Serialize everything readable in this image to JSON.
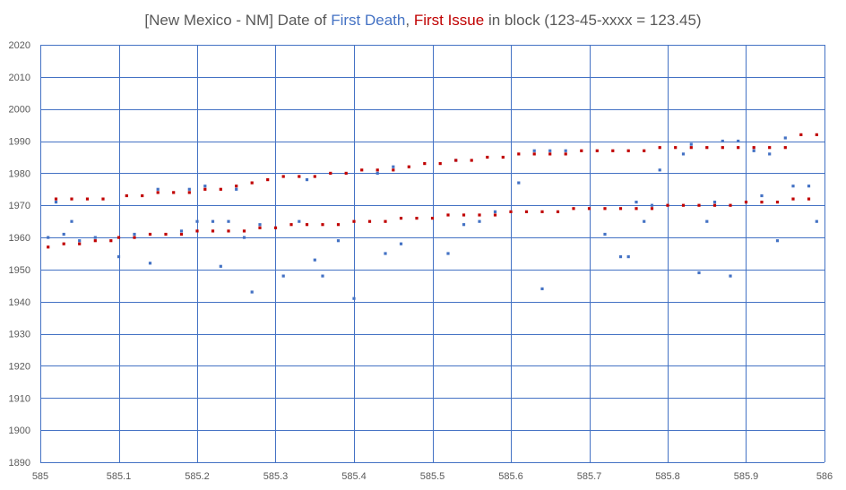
{
  "chart_data": {
    "type": "scatter",
    "title": {
      "prefix": "[New Mexico - NM] Date of ",
      "death_label": "First Death",
      "separator": ", ",
      "issue_label": "First Issue",
      "suffix": " in block (123-45-xxxx = 123.45)"
    },
    "xlim": [
      585,
      586
    ],
    "ylim": [
      1890,
      2020
    ],
    "x_ticks": [
      "585",
      "585.1",
      "585.2",
      "585.3",
      "585.4",
      "585.5",
      "585.6",
      "585.7",
      "585.8",
      "585.9",
      "586"
    ],
    "y_ticks": [
      "1890",
      "1900",
      "1910",
      "1920",
      "1930",
      "1940",
      "1950",
      "1960",
      "1970",
      "1980",
      "1990",
      "2000",
      "2010",
      "2020"
    ],
    "grid": true,
    "colors": {
      "First Death": "#4472c4",
      "First Issue": "#c00000",
      "grid": "#4472c4",
      "title_text": "#595959"
    },
    "series": [
      {
        "name": "First Death",
        "points": [
          [
            585.01,
            1960
          ],
          [
            585.02,
            1971
          ],
          [
            585.03,
            1961
          ],
          [
            585.04,
            1965
          ],
          [
            585.05,
            1959
          ],
          [
            585.07,
            1960
          ],
          [
            585.1,
            1954
          ],
          [
            585.12,
            1961
          ],
          [
            585.14,
            1952
          ],
          [
            585.15,
            1975
          ],
          [
            585.18,
            1962
          ],
          [
            585.19,
            1975
          ],
          [
            585.2,
            1965
          ],
          [
            585.21,
            1976
          ],
          [
            585.22,
            1965
          ],
          [
            585.23,
            1951
          ],
          [
            585.24,
            1965
          ],
          [
            585.25,
            1975
          ],
          [
            585.26,
            1960
          ],
          [
            585.27,
            1943
          ],
          [
            585.28,
            1964
          ],
          [
            585.31,
            1948
          ],
          [
            585.33,
            1965
          ],
          [
            585.34,
            1978
          ],
          [
            585.35,
            1953
          ],
          [
            585.36,
            1948
          ],
          [
            585.38,
            1959
          ],
          [
            585.4,
            1941
          ],
          [
            585.43,
            1980
          ],
          [
            585.44,
            1955
          ],
          [
            585.45,
            1982
          ],
          [
            585.46,
            1958
          ],
          [
            585.52,
            1955
          ],
          [
            585.53,
            1984
          ],
          [
            585.54,
            1964
          ],
          [
            585.56,
            1965
          ],
          [
            585.58,
            1968
          ],
          [
            585.61,
            1977
          ],
          [
            585.63,
            1987
          ],
          [
            585.64,
            1944
          ],
          [
            585.65,
            1987
          ],
          [
            585.67,
            1987
          ],
          [
            585.72,
            1961
          ],
          [
            585.74,
            1954
          ],
          [
            585.75,
            1954
          ],
          [
            585.76,
            1971
          ],
          [
            585.77,
            1965
          ],
          [
            585.78,
            1970
          ],
          [
            585.79,
            1981
          ],
          [
            585.82,
            1986
          ],
          [
            585.83,
            1989
          ],
          [
            585.84,
            1949
          ],
          [
            585.85,
            1965
          ],
          [
            585.86,
            1971
          ],
          [
            585.87,
            1990
          ],
          [
            585.88,
            1948
          ],
          [
            585.89,
            1990
          ],
          [
            585.91,
            1987
          ],
          [
            585.92,
            1973
          ],
          [
            585.93,
            1986
          ],
          [
            585.94,
            1959
          ],
          [
            585.95,
            1991
          ],
          [
            585.96,
            1976
          ],
          [
            585.98,
            1976
          ],
          [
            585.99,
            1965
          ]
        ]
      },
      {
        "name": "First Issue",
        "points": [
          [
            585.01,
            1957
          ],
          [
            585.02,
            1972
          ],
          [
            585.03,
            1958
          ],
          [
            585.04,
            1972
          ],
          [
            585.05,
            1958
          ],
          [
            585.06,
            1972
          ],
          [
            585.07,
            1959
          ],
          [
            585.08,
            1972
          ],
          [
            585.09,
            1959
          ],
          [
            585.1,
            1960
          ],
          [
            585.11,
            1973
          ],
          [
            585.12,
            1960
          ],
          [
            585.13,
            1973
          ],
          [
            585.14,
            1961
          ],
          [
            585.15,
            1974
          ],
          [
            585.16,
            1961
          ],
          [
            585.17,
            1974
          ],
          [
            585.18,
            1961
          ],
          [
            585.19,
            1974
          ],
          [
            585.2,
            1962
          ],
          [
            585.21,
            1975
          ],
          [
            585.22,
            1962
          ],
          [
            585.23,
            1975
          ],
          [
            585.24,
            1962
          ],
          [
            585.25,
            1976
          ],
          [
            585.26,
            1962
          ],
          [
            585.27,
            1977
          ],
          [
            585.28,
            1963
          ],
          [
            585.29,
            1978
          ],
          [
            585.3,
            1963
          ],
          [
            585.31,
            1979
          ],
          [
            585.32,
            1964
          ],
          [
            585.33,
            1979
          ],
          [
            585.34,
            1964
          ],
          [
            585.35,
            1979
          ],
          [
            585.36,
            1964
          ],
          [
            585.37,
            1980
          ],
          [
            585.38,
            1964
          ],
          [
            585.39,
            1980
          ],
          [
            585.4,
            1965
          ],
          [
            585.41,
            1981
          ],
          [
            585.42,
            1965
          ],
          [
            585.43,
            1981
          ],
          [
            585.44,
            1965
          ],
          [
            585.45,
            1981
          ],
          [
            585.46,
            1966
          ],
          [
            585.47,
            1982
          ],
          [
            585.48,
            1966
          ],
          [
            585.49,
            1983
          ],
          [
            585.5,
            1966
          ],
          [
            585.51,
            1983
          ],
          [
            585.52,
            1967
          ],
          [
            585.53,
            1984
          ],
          [
            585.54,
            1967
          ],
          [
            585.55,
            1984
          ],
          [
            585.56,
            1967
          ],
          [
            585.57,
            1985
          ],
          [
            585.58,
            1967
          ],
          [
            585.59,
            1985
          ],
          [
            585.6,
            1968
          ],
          [
            585.61,
            1986
          ],
          [
            585.62,
            1968
          ],
          [
            585.63,
            1986
          ],
          [
            585.64,
            1968
          ],
          [
            585.65,
            1986
          ],
          [
            585.66,
            1968
          ],
          [
            585.67,
            1986
          ],
          [
            585.68,
            1969
          ],
          [
            585.69,
            1987
          ],
          [
            585.7,
            1969
          ],
          [
            585.71,
            1987
          ],
          [
            585.72,
            1969
          ],
          [
            585.73,
            1987
          ],
          [
            585.74,
            1969
          ],
          [
            585.75,
            1987
          ],
          [
            585.76,
            1969
          ],
          [
            585.77,
            1987
          ],
          [
            585.78,
            1969
          ],
          [
            585.79,
            1988
          ],
          [
            585.8,
            1970
          ],
          [
            585.81,
            1988
          ],
          [
            585.82,
            1970
          ],
          [
            585.83,
            1988
          ],
          [
            585.84,
            1970
          ],
          [
            585.85,
            1988
          ],
          [
            585.86,
            1970
          ],
          [
            585.87,
            1988
          ],
          [
            585.88,
            1970
          ],
          [
            585.89,
            1988
          ],
          [
            585.9,
            1971
          ],
          [
            585.91,
            1988
          ],
          [
            585.92,
            1971
          ],
          [
            585.93,
            1988
          ],
          [
            585.94,
            1971
          ],
          [
            585.95,
            1988
          ],
          [
            585.96,
            1972
          ],
          [
            585.97,
            1992
          ],
          [
            585.98,
            1972
          ],
          [
            585.99,
            1992
          ]
        ]
      }
    ]
  }
}
